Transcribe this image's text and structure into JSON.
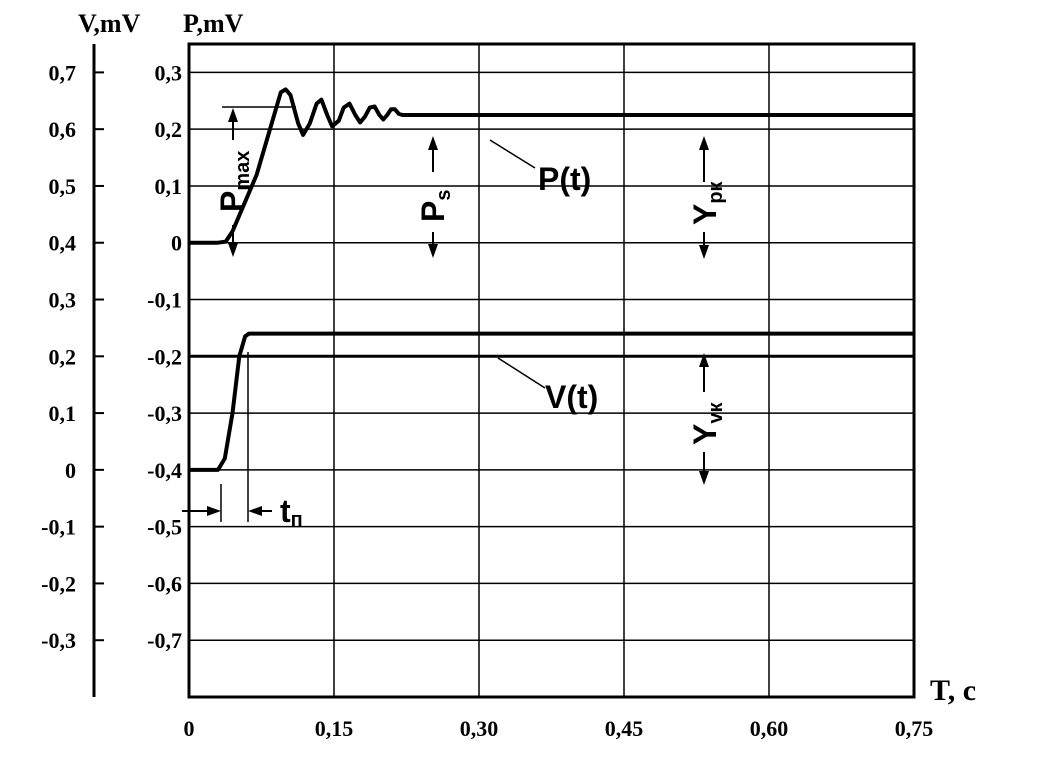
{
  "chart_data": {
    "type": "line",
    "x_axis": {
      "label": "T, c",
      "range": [
        0,
        0.75
      ],
      "ticks": [
        0,
        0.15,
        0.3,
        0.45,
        0.6,
        0.75
      ],
      "tick_labels": [
        "0",
        "0,15",
        "0,30",
        "0,45",
        "0,60",
        "0,75"
      ]
    },
    "y_axes": [
      {
        "label": "V,mV",
        "range": [
          -0.4,
          0.75
        ],
        "ticks": [
          0.7,
          0.6,
          0.5,
          0.4,
          0.3,
          0.2,
          0.1,
          0,
          -0.1,
          -0.2,
          -0.3
        ],
        "tick_labels": [
          "0,7",
          "0,6",
          "0,5",
          "0,4",
          "0,3",
          "0,2",
          "0,1",
          "0",
          "-0,1",
          "-0,2",
          "-0,3"
        ]
      },
      {
        "label": "P,mV",
        "range": [
          -0.8,
          0.35
        ],
        "ticks": [
          0.3,
          0.2,
          0.1,
          0,
          -0.1,
          -0.2,
          -0.3,
          -0.4,
          -0.5,
          -0.6,
          -0.7
        ],
        "tick_labels": [
          "0,3",
          "0,2",
          "0,1",
          "0",
          "-0,1",
          "-0,2",
          "-0,3",
          "-0,4",
          "-0,5",
          "-0,6",
          "-0,7"
        ]
      }
    ],
    "grid": true,
    "series": [
      {
        "name": "P(t)",
        "axis": "P,mV",
        "points": [
          [
            0,
            0
          ],
          [
            0.03,
            0
          ],
          [
            0.038,
            0.002
          ],
          [
            0.045,
            0.02
          ],
          [
            0.07,
            0.12
          ],
          [
            0.095,
            0.265
          ],
          [
            0.1,
            0.27
          ],
          [
            0.105,
            0.26
          ],
          [
            0.113,
            0.21
          ],
          [
            0.118,
            0.19
          ],
          [
            0.125,
            0.21
          ],
          [
            0.132,
            0.245
          ],
          [
            0.137,
            0.252
          ],
          [
            0.143,
            0.225
          ],
          [
            0.148,
            0.205
          ],
          [
            0.155,
            0.215
          ],
          [
            0.16,
            0.238
          ],
          [
            0.166,
            0.245
          ],
          [
            0.172,
            0.225
          ],
          [
            0.177,
            0.212
          ],
          [
            0.182,
            0.222
          ],
          [
            0.187,
            0.238
          ],
          [
            0.192,
            0.24
          ],
          [
            0.197,
            0.225
          ],
          [
            0.201,
            0.217
          ],
          [
            0.205,
            0.225
          ],
          [
            0.209,
            0.235
          ],
          [
            0.213,
            0.235
          ],
          [
            0.217,
            0.227
          ],
          [
            0.221,
            0.225
          ],
          [
            0.75,
            0.225
          ]
        ]
      },
      {
        "name": "V(t)",
        "axis": "V,mV",
        "points": [
          [
            0,
            0
          ],
          [
            0.03,
            0
          ],
          [
            0.037,
            0.02
          ],
          [
            0.045,
            0.1
          ],
          [
            0.052,
            0.2
          ],
          [
            0.058,
            0.235
          ],
          [
            0.062,
            0.24
          ],
          [
            0.75,
            0.24
          ]
        ]
      }
    ],
    "hlines": [
      {
        "axis": "V,mV",
        "value": 0.2,
        "from": 0,
        "to": 0.75
      }
    ],
    "annotations": {
      "p_max": "P",
      "p_max_sub": "max",
      "p_s": "P",
      "p_s_sub": "s",
      "y_pk": "Y",
      "y_pk_sub": "pк",
      "y_vk": "Y",
      "y_vk_sub": "vк",
      "t_p": "t",
      "t_p_sub": "п"
    }
  }
}
